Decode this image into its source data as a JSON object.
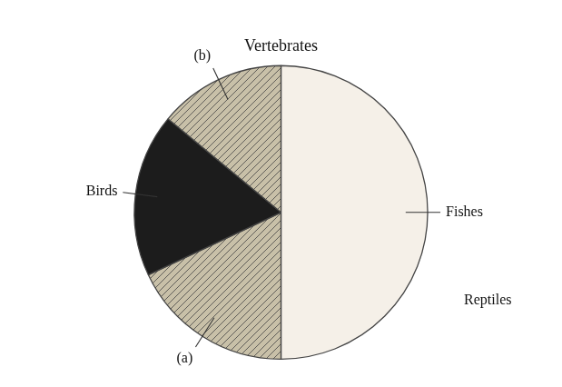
{
  "chart_data": {
    "type": "pie",
    "title": "Vertebrates",
    "categories": [
      "Fishes",
      "(a)",
      "Birds",
      "(b)"
    ],
    "values": [
      50,
      18,
      18,
      14
    ],
    "colors": [
      "#f5f0e8",
      "#c8c0a8",
      "#1c1c1c",
      "#c8c0a8"
    ],
    "annotations": [
      "Reptiles"
    ],
    "legend": false
  }
}
